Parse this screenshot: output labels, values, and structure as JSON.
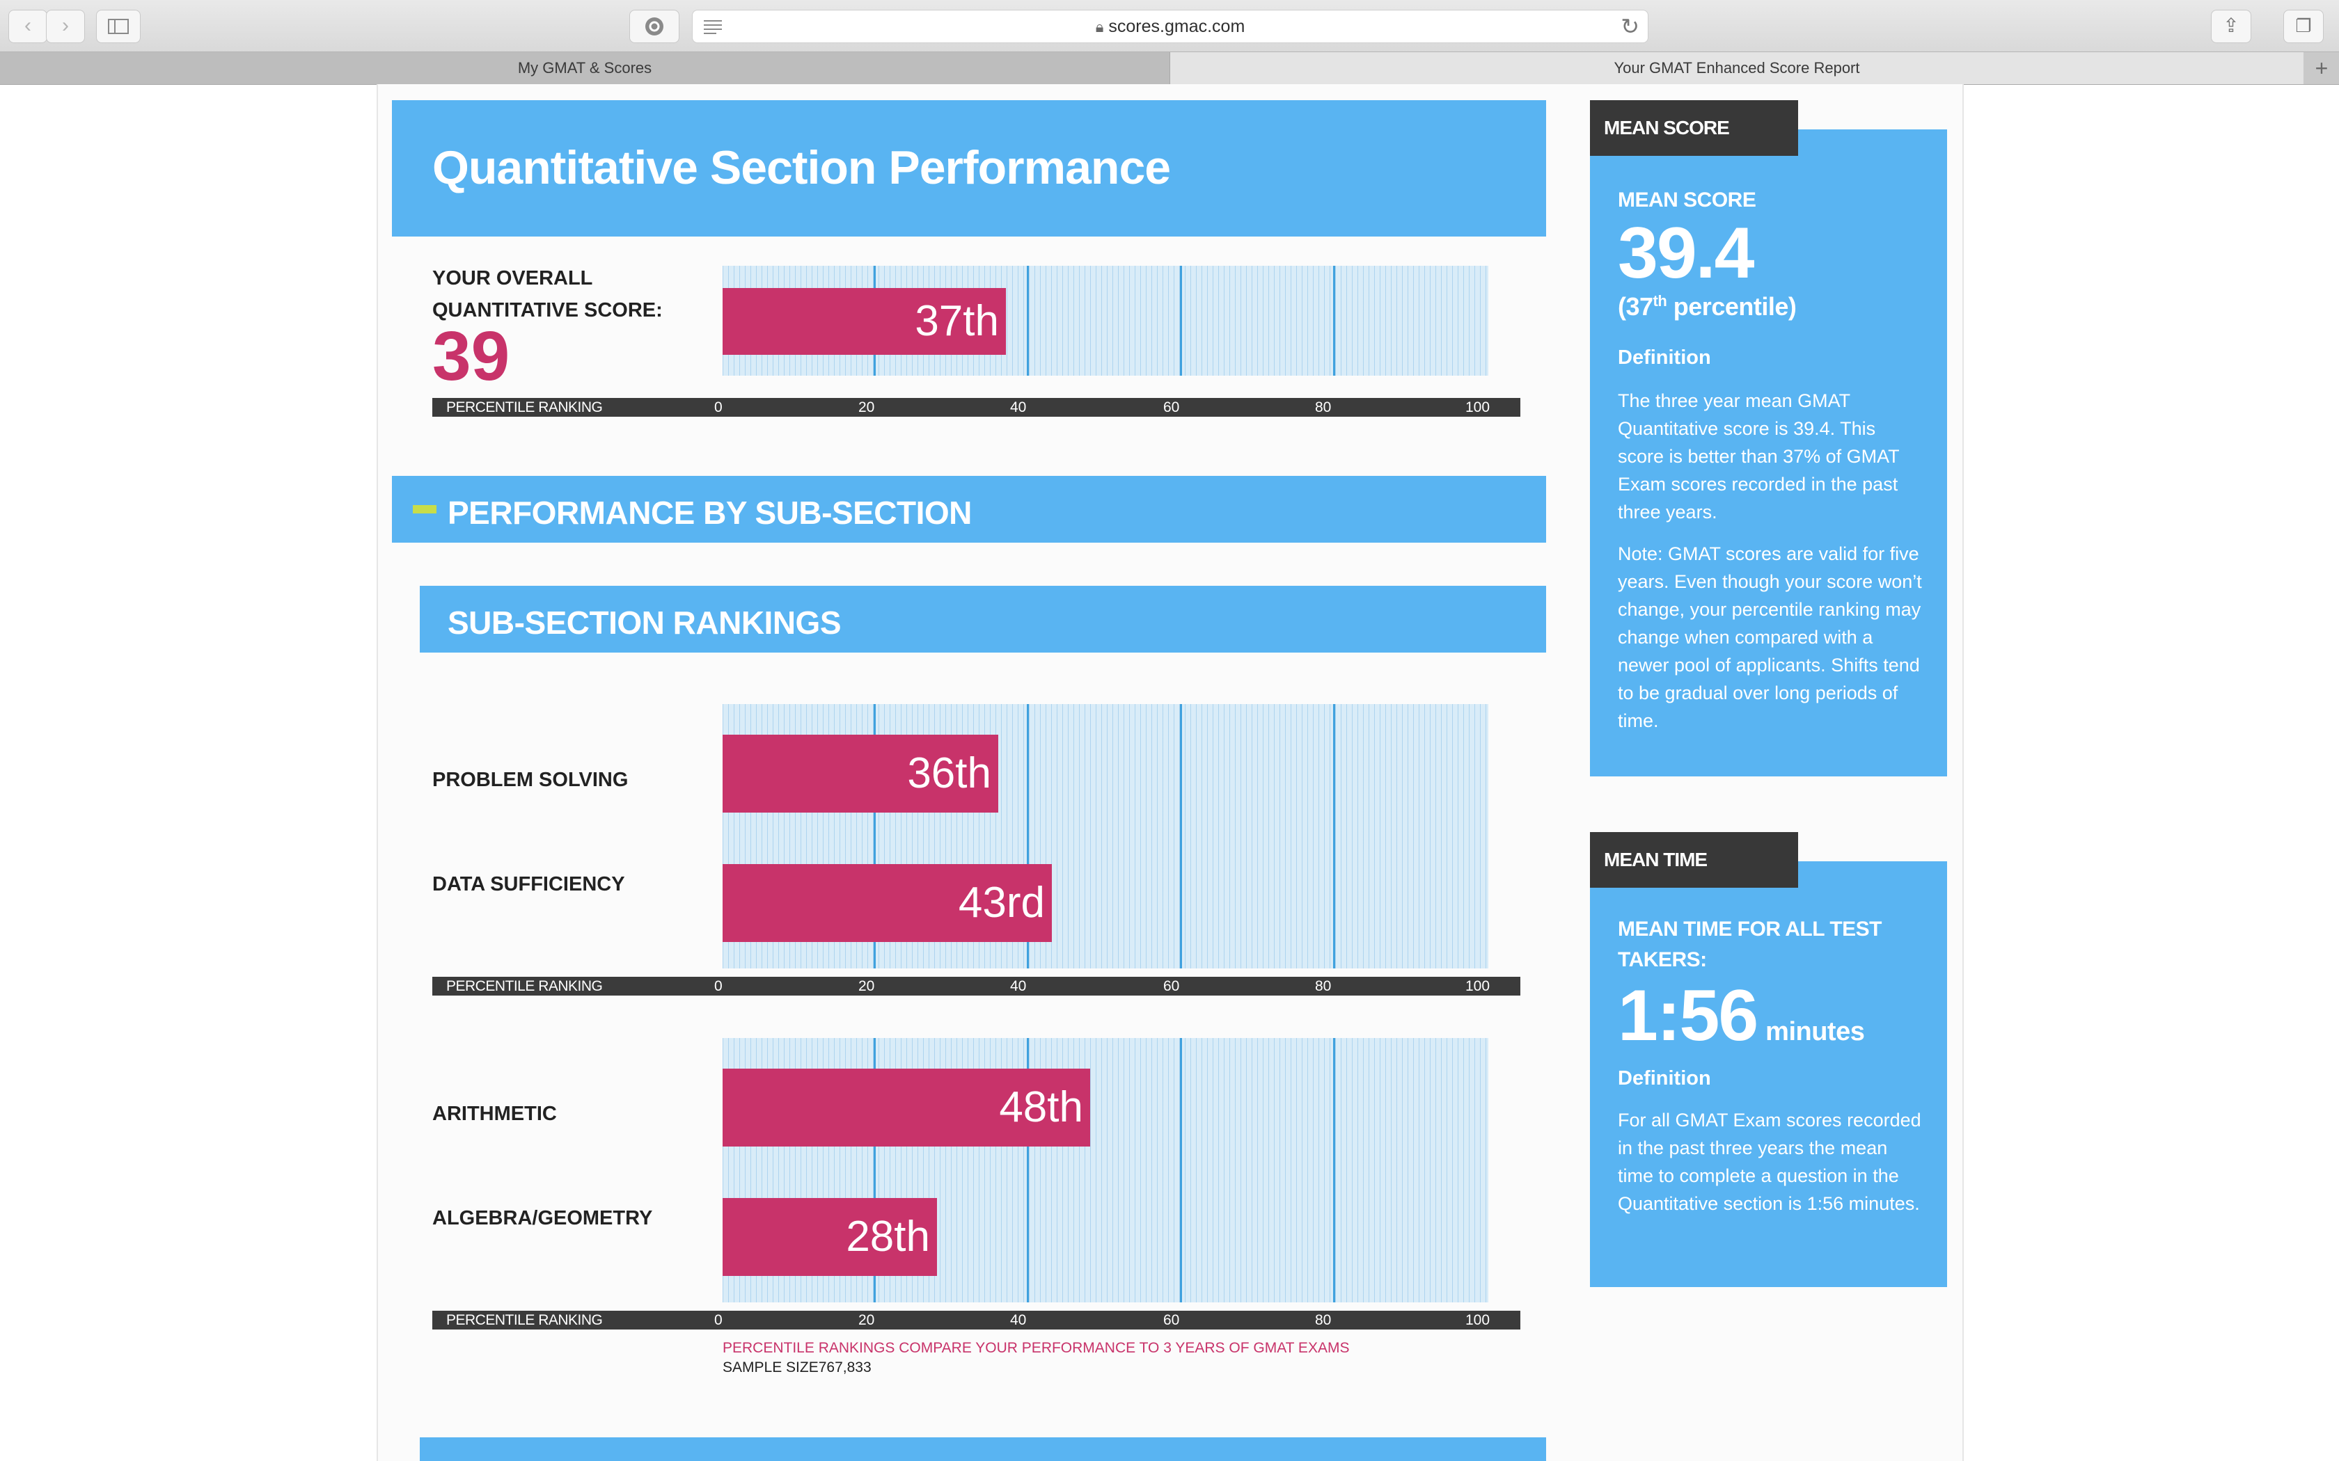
{
  "browser": {
    "url": "scores.gmac.com",
    "tabs": [
      {
        "label": "My GMAT & Scores"
      },
      {
        "label": "Your GMAT Enhanced Score Report"
      }
    ],
    "new_tab_label": "+"
  },
  "page": {
    "title": "Quantitative Section Performance",
    "overall": {
      "label_line1": "YOUR OVERALL",
      "label_line2": "QUANTITATIVE SCORE:",
      "score": "39",
      "percentile_value": 37,
      "percentile_label": "37th"
    },
    "axis": {
      "label": "PERCENTILE RANKING",
      "ticks": [
        "0",
        "20",
        "40",
        "60",
        "80",
        "100"
      ]
    },
    "performance_heading": "PERFORMANCE BY SUB-SECTION",
    "rankings_heading": "SUB-SECTION RANKINGS",
    "subsections": [
      {
        "name": "PROBLEM SOLVING",
        "value": 36,
        "label": "36th"
      },
      {
        "name": "DATA SUFFICIENCY",
        "value": 43,
        "label": "43rd"
      },
      {
        "name": "ARITHMETIC",
        "value": 48,
        "label": "48th"
      },
      {
        "name": "ALGEBRA/GEOMETRY",
        "value": 28,
        "label": "28th"
      }
    ],
    "footnote_pink": "PERCENTILE RANKINGS COMPARE YOUR PERFORMANCE TO 3 YEARS OF GMAT EXAMS",
    "footnote_sample": "SAMPLE SIZE767,833"
  },
  "sidebar": {
    "mean_score": {
      "tag": "MEAN SCORE",
      "heading": "MEAN SCORE",
      "value": "39.4",
      "percentile_prefix": "(37",
      "percentile_sup": "th",
      "percentile_suffix": " percentile)",
      "definition_label": "Definition",
      "definition_text": "The three year mean GMAT Quantitative score is 39.4. This score is better than 37% of GMAT Exam scores recorded in the past three years.",
      "note_text": "Note: GMAT scores are valid for five years. Even though your score won’t change, your percentile ranking may change when compared with a newer pool of applicants. Shifts tend to be gradual over long periods of time."
    },
    "mean_time": {
      "tag": "MEAN TIME",
      "heading_line1": "MEAN TIME FOR ALL TEST",
      "heading_line2": "TAKERS:",
      "value": "1:56",
      "unit": "minutes",
      "definition_label": "Definition",
      "definition_text": "For all GMAT Exam scores recorded in the past three years the mean time to complete a question in the Quantitative section is 1:56 minutes."
    }
  },
  "colors": {
    "accent_blue": "#59b4f2",
    "bar_pink": "#c8336a",
    "dark": "#383838",
    "dash_green": "#c8dd4a"
  }
}
